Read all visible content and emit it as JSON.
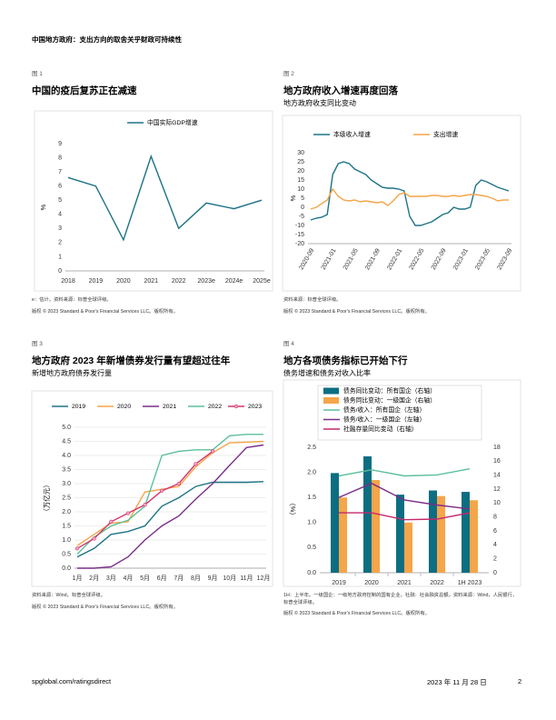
{
  "header": {
    "title": "中国地方政府：支出方向的取舍关乎财政可持续性"
  },
  "footer": {
    "site": "spglobal.com/ratingsdirect",
    "date": "2023 年 11 月 28 日",
    "page": "2"
  },
  "chart_data": [
    {
      "type": "line",
      "label": "图 1",
      "title": "中国的疫后复苏正在减速",
      "ylabel": "%",
      "legend": "top",
      "categories": [
        "2018",
        "2019",
        "2020",
        "2021",
        "2022",
        "2023e",
        "2024e",
        "2025e"
      ],
      "series": [
        {
          "name": "中国实际GDP增速",
          "color": "#1d7386",
          "values": [
            6.6,
            6.0,
            2.2,
            8.1,
            3.0,
            4.8,
            4.4,
            5.0
          ]
        }
      ],
      "ylim": [
        0,
        9
      ],
      "yticks": [
        0,
        1,
        2,
        3,
        4,
        5,
        6,
        7,
        8,
        9
      ],
      "grid": false,
      "notes": [
        "e：估计。资料来源：标普全球评级。",
        "版权 © 2023 Standard & Poor's Financial Services LLC。版权所有。"
      ]
    },
    {
      "type": "line",
      "label": "图 2",
      "title": "地方政府收入增速再度回落",
      "subtitle": "地方政府收支同比变动",
      "ylabel": "%",
      "legend": "top",
      "categories": [
        "2020-09",
        null,
        null,
        null,
        "2021-01",
        null,
        null,
        null,
        "2021-05",
        null,
        null,
        null,
        "2021-09",
        null,
        null,
        null,
        "2022-01",
        null,
        null,
        null,
        "2022-05",
        null,
        null,
        null,
        "2022-09",
        null,
        null,
        null,
        "2023-01",
        null,
        null,
        null,
        "2023-05",
        null,
        null,
        null,
        "2023-09"
      ],
      "series": [
        {
          "name": "本级收入增速",
          "color": "#1d7386",
          "values": [
            -7,
            -6,
            -5.5,
            -4,
            18,
            24,
            25,
            24,
            21,
            19.5,
            18,
            15,
            13,
            11,
            10.5,
            10.5,
            10,
            9,
            -5,
            -10,
            -10,
            -9,
            -8,
            -6,
            -4,
            -3,
            0,
            -1,
            -1,
            0,
            12,
            15,
            14,
            12.5,
            11,
            10,
            9
          ]
        },
        {
          "name": "支出增速",
          "color": "#f5a54a",
          "values": [
            -1,
            0,
            2,
            4,
            10,
            6,
            4,
            3.5,
            4,
            3,
            3.5,
            3,
            2.5,
            3,
            1,
            3.5,
            7,
            8,
            6,
            6,
            6,
            6,
            6.5,
            6.5,
            6,
            6,
            6.5,
            6,
            6.5,
            7,
            7,
            6.5,
            6,
            5,
            3.5,
            4,
            4
          ]
        }
      ],
      "ylim": [
        -20,
        30
      ],
      "yticks": [
        -20,
        -15,
        -10,
        -5,
        0,
        5,
        10,
        15,
        20,
        25,
        30
      ],
      "grid": false,
      "notes": [
        "资料来源：标普全球评级。",
        "版权 © 2023 Standard & Poor's Financial Services LLC。版权所有。"
      ]
    },
    {
      "type": "line",
      "label": "图 3",
      "title": "地方政府 2023 年新增债券发行量有望超过往年",
      "subtitle": "新增地方政府债券发行量",
      "ylabel": "（万亿元）",
      "legend": "top",
      "categories": [
        "1月",
        "2月",
        "3月",
        "4月",
        "5月",
        "6月",
        "7月",
        "8月",
        "9月",
        "10月",
        "11月",
        "12月"
      ],
      "series": [
        {
          "name": "2019",
          "color": "#1d7386",
          "values": [
            0.4,
            0.7,
            1.2,
            1.3,
            1.5,
            2.2,
            2.5,
            2.9,
            3.05,
            3.05,
            3.05,
            3.07
          ]
        },
        {
          "name": "2020",
          "color": "#f5a54a",
          "values": [
            0.8,
            1.2,
            1.6,
            1.65,
            2.7,
            2.8,
            2.9,
            3.6,
            4.1,
            4.45,
            4.47,
            4.5
          ]
        },
        {
          "name": "2021",
          "color": "#7b2d8a",
          "values": [
            0,
            0,
            0.05,
            0.4,
            1.0,
            1.5,
            1.85,
            2.45,
            3.0,
            3.65,
            4.28,
            4.37
          ]
        },
        {
          "name": "2022",
          "color": "#5cc09a",
          "values": [
            0.5,
            1.1,
            1.5,
            1.7,
            2.2,
            4.0,
            4.15,
            4.2,
            4.2,
            4.7,
            4.75,
            4.75
          ]
        },
        {
          "name": "2023",
          "color": "#d6336c",
          "markers": true,
          "values": [
            0.7,
            1.05,
            1.65,
            1.95,
            2.25,
            2.75,
            3.0,
            3.7,
            4.15,
            null,
            null,
            null
          ]
        }
      ],
      "ylim": [
        0,
        5
      ],
      "yticks": [
        {
          "value": 0,
          "label": "0.0"
        },
        0.5,
        {
          "value": 1,
          "label": "1.0"
        },
        1.5,
        {
          "value": 2,
          "label": "2.0"
        },
        2.5,
        {
          "value": 3,
          "label": "3.0"
        },
        3.5,
        {
          "value": 4,
          "label": "4.0"
        },
        4.5,
        {
          "value": 5,
          "label": "5.0"
        }
      ],
      "grid": true,
      "notes": [
        "资料来源：Wind，标普全球评级。",
        "版权 © 2023 Standard & Poor's Financial Services LLC。版权所有。"
      ]
    },
    {
      "type": "bar",
      "label": "图 4",
      "title": "地方各项债务指标已开始下行",
      "subtitle": "债务增速和债务对收入比率",
      "ylabel": "（%）",
      "legend": "top-left",
      "categories": [
        "2019",
        "2020",
        "2021",
        "2022",
        "1H 2023"
      ],
      "series": [
        {
          "name": "债务同比变动：所有国企（右轴）",
          "type": "bar",
          "axis": "y2",
          "color": "#0b6e82",
          "values": [
            14.3,
            16.7,
            11.2,
            11.8,
            11.6
          ]
        },
        {
          "name": "债务同比变动：一级国企（右轴）",
          "type": "bar",
          "axis": "y2",
          "color": "#f5a54a",
          "values": [
            10.8,
            13.3,
            7.2,
            11.0,
            10.4
          ]
        },
        {
          "name": "债务/收入：所有国企（左轴）",
          "type": "line",
          "color": "#5cc09a",
          "values": [
            1.93,
            2.05,
            1.93,
            1.95,
            2.07
          ]
        },
        {
          "name": "债务/收入：一级国企（左轴）",
          "type": "line",
          "color": "#7b2d8a",
          "values": [
            1.5,
            1.78,
            1.45,
            1.35,
            1.27
          ]
        },
        {
          "name": "社融存量同比变动（右轴）",
          "type": "line",
          "axis": "y2",
          "color": "#c4286c",
          "values": [
            8.6,
            8.6,
            7.6,
            7.7,
            8.6
          ]
        }
      ],
      "ylim": [
        0,
        2.5
      ],
      "yticks": [
        {
          "value": 0,
          "label": "0.0"
        },
        0.5,
        {
          "value": 1,
          "label": "1.0"
        },
        1.5,
        {
          "value": 2,
          "label": "2.0"
        },
        2.5
      ],
      "y2lim": [
        0,
        18
      ],
      "y2ticks": [
        0,
        2,
        4,
        6,
        8,
        10,
        12,
        14,
        16,
        18
      ],
      "grid": false,
      "notes": [
        "1H：上半年。一级国企：一级地方政府控制的国有企业。社融：社会融资总额。资料来源：Wind，人民银行，标普全球评级。",
        "版权 © 2023 Standard & Poor's Financial Services LLC。版权所有。"
      ]
    }
  ]
}
